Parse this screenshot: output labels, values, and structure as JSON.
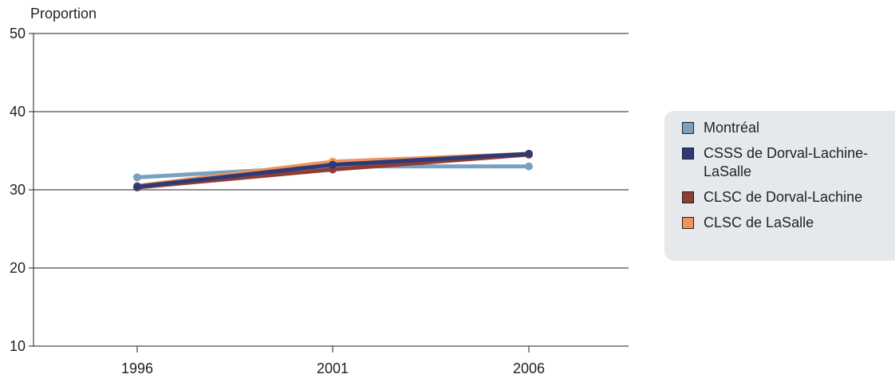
{
  "chart_data": {
    "type": "line",
    "ylabel": "Proportion",
    "xlabel": "",
    "x": [
      "1996",
      "2001",
      "2006"
    ],
    "ylim": [
      10,
      50
    ],
    "yticks": [
      "10",
      "20",
      "30",
      "40",
      "50"
    ],
    "grid": "horizontal",
    "legend_position": "right",
    "series": [
      {
        "name": "Montréal",
        "color": "#7aa0bf",
        "values": [
          31.6,
          33.0,
          33.0
        ]
      },
      {
        "name": "CLSC de Dorval-Lachine",
        "color": "#8e3d35",
        "values": [
          30.3,
          32.6,
          34.5
        ]
      },
      {
        "name": "CLSC de LaSalle",
        "color": "#f0955a",
        "values": [
          30.5,
          33.6,
          34.6
        ]
      },
      {
        "name": "CSSS de Dorval-Lachine-LaSalle",
        "color": "#2e3a78",
        "values": [
          30.4,
          33.2,
          34.6
        ]
      }
    ]
  },
  "legend": {
    "items": [
      {
        "label": "Montréal",
        "color": "#7aa0bf"
      },
      {
        "label": "CSSS de Dorval-Lachine-LaSalle",
        "color": "#2e3a78"
      },
      {
        "label": "CLSC de Dorval-Lachine",
        "color": "#8e3d35"
      },
      {
        "label": "CLSC de LaSalle",
        "color": "#f0955a"
      }
    ]
  }
}
